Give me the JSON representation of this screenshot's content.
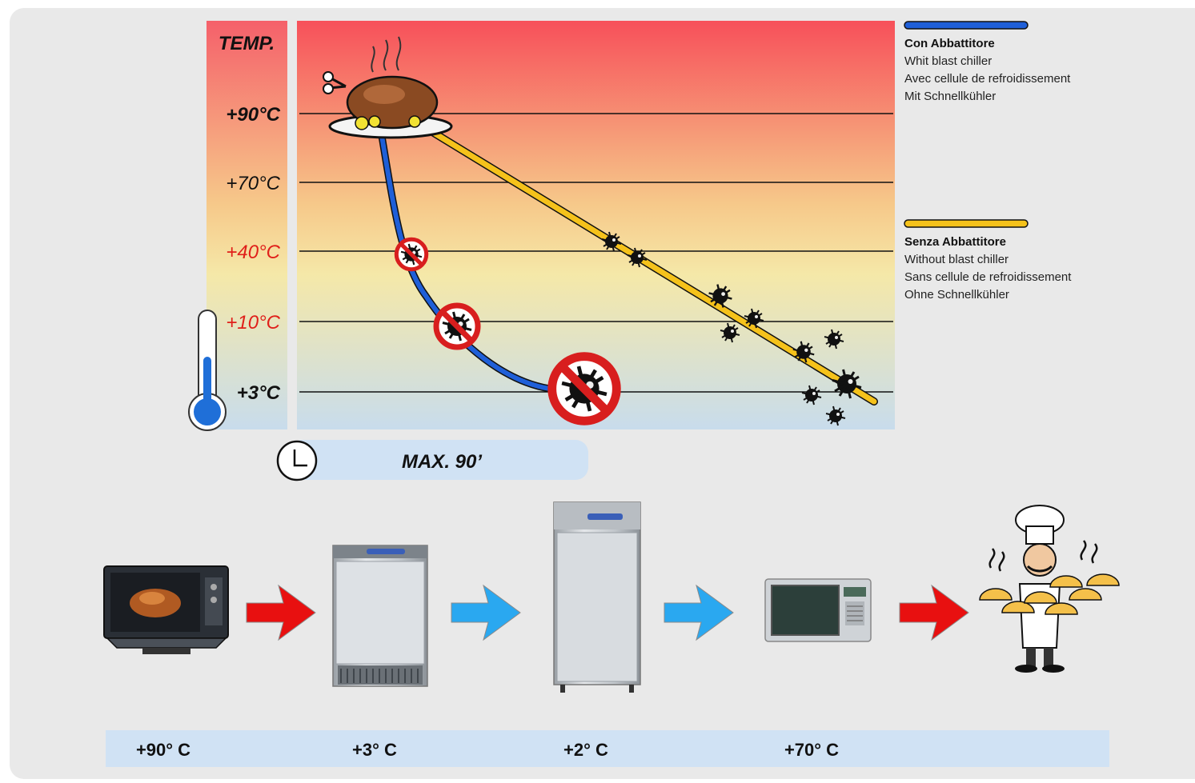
{
  "chart": {
    "axis_title": "TEMP.",
    "levels": [
      {
        "label": "+90°C",
        "color": "#111111",
        "weight": "bold"
      },
      {
        "label": "+70°C",
        "color": "#111111",
        "weight": "normal"
      },
      {
        "label": "+40°C",
        "color": "#e0201a",
        "weight": "normal"
      },
      {
        "label": "+10°C",
        "color": "#e0201a",
        "weight": "normal"
      },
      {
        "label": "+3°C",
        "color": "#111111",
        "weight": "bold"
      }
    ],
    "time_label": "MAX. 90’"
  },
  "legend": [
    {
      "color": "#1f5fd8",
      "title": "Con Abbattitore",
      "lines": [
        "Whit blast chiller",
        "Avec cellule de refroidissement",
        "Mit Schnellkühler"
      ]
    },
    {
      "color": "#f5c21b",
      "title": "Senza Abbattitore",
      "lines": [
        "Without blast chiller",
        "Sans cellule de refroidissement",
        "Ohne Schnellkühler"
      ]
    }
  ],
  "process": {
    "stages": [
      {
        "icon": "oven-icon",
        "temp": "+90° C"
      },
      {
        "icon": "blast-chiller-icon",
        "temp": "+3° C"
      },
      {
        "icon": "refrigerator-icon",
        "temp": "+2° C"
      },
      {
        "icon": "microwave-icon",
        "temp": "+70° C"
      },
      {
        "icon": "chef-serving-icon",
        "temp": ""
      }
    ],
    "arrows": [
      {
        "icon": "arrow-right-icon",
        "color": "#e81010"
      },
      {
        "icon": "arrow-right-icon",
        "color": "#2aa8f0"
      },
      {
        "icon": "arrow-right-icon",
        "color": "#2aa8f0"
      },
      {
        "icon": "arrow-right-icon",
        "color": "#e81010"
      }
    ]
  },
  "colors": {
    "hot": "#f7505a",
    "warm": "#f5e8a8",
    "cold": "#c8dcec",
    "blue_curve": "#1f5fd8",
    "yellow_curve": "#f5c21b",
    "forbidden": "#d81e1e"
  }
}
